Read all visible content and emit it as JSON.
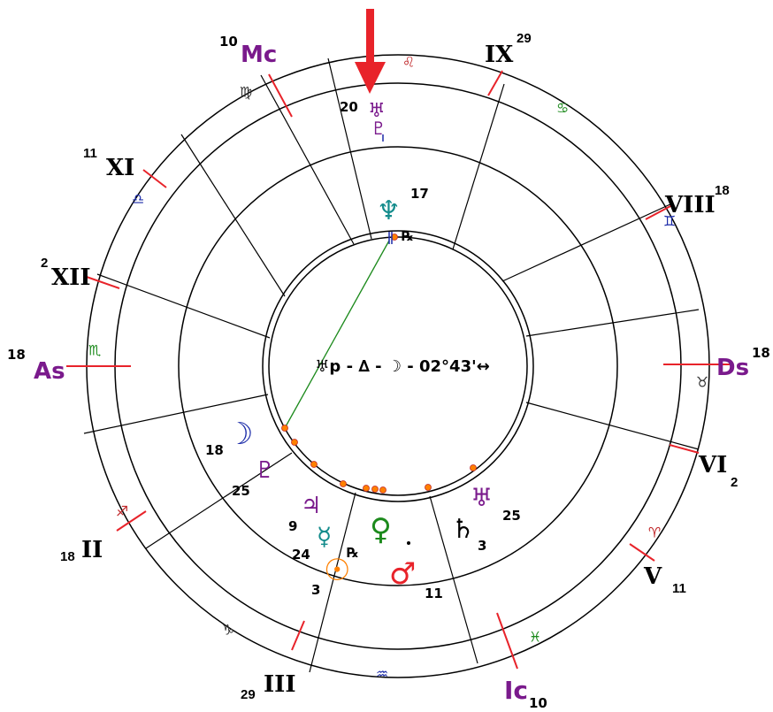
{
  "colors": {
    "ring": "#000000",
    "house_line": "#000000",
    "cusp_tick": "#e8232a",
    "arrow": "#e8232a",
    "aspect_line": "#1c8a1c",
    "angle_label": "#7a1a8c",
    "planet_dot": "#ff8000"
  },
  "aspect_label": "♅p - ∆ - ☽ - 02°43'↔",
  "angles": [
    {
      "name": "ascendant",
      "label": "As",
      "degree": "18"
    },
    {
      "name": "midheaven",
      "label": "Mc",
      "degree": "10"
    },
    {
      "name": "descendant",
      "label": "Ds",
      "degree": "18"
    },
    {
      "name": "imum-coeli",
      "label": "Ic",
      "degree": "10"
    }
  ],
  "houses": [
    {
      "label": "XII",
      "degree": "2"
    },
    {
      "label": "XI",
      "degree": "11"
    },
    {
      "label": "IX",
      "degree": "29"
    },
    {
      "label": "VIII",
      "degree": "18"
    },
    {
      "label": "VI",
      "degree": "2"
    },
    {
      "label": "V",
      "degree": "11"
    },
    {
      "label": "III",
      "degree": "29"
    },
    {
      "label": "II",
      "degree": "18"
    }
  ],
  "signs": [
    {
      "name": "leo",
      "glyph": "♌",
      "color": "#c0282a"
    },
    {
      "name": "cancer",
      "glyph": "♋",
      "color": "#1c8a1c"
    },
    {
      "name": "gemini",
      "glyph": "♊",
      "color": "#1a2aa8"
    },
    {
      "name": "taurus",
      "glyph": "♉",
      "color": "#333333"
    },
    {
      "name": "aries",
      "glyph": "♈",
      "color": "#c0282a"
    },
    {
      "name": "pisces",
      "glyph": "♓",
      "color": "#1c8a1c"
    },
    {
      "name": "aquarius",
      "glyph": "♒",
      "color": "#1a2aa8"
    },
    {
      "name": "capricorn",
      "glyph": "♑",
      "color": "#333333"
    },
    {
      "name": "sagittarius",
      "glyph": "♐",
      "color": "#c0282a"
    },
    {
      "name": "scorpio",
      "glyph": "♏",
      "color": "#1c8a1c"
    },
    {
      "name": "libra",
      "glyph": "♎",
      "color": "#1a2aa8"
    },
    {
      "name": "virgo",
      "glyph": "♍",
      "color": "#333333"
    }
  ],
  "planets": [
    {
      "name": "progressed-uranus",
      "glyph": "♅",
      "degree": "20",
      "color": "#7a1a8c"
    },
    {
      "name": "progressed-pluto",
      "glyph": "♇",
      "degree": "",
      "color": "#7a1a8c"
    },
    {
      "name": "neptune",
      "glyph": "♆",
      "degree": "17",
      "retro": "℞",
      "color": "#148c8c"
    },
    {
      "name": "moon",
      "glyph": "☽",
      "degree": "18",
      "color": "#1a2aa8"
    },
    {
      "name": "pluto",
      "glyph": "♇",
      "degree": "25",
      "color": "#7a1a8c"
    },
    {
      "name": "jupiter",
      "glyph": "♃",
      "degree": "9",
      "color": "#7a1a8c"
    },
    {
      "name": "mercury",
      "glyph": "☿",
      "degree": "24",
      "retro": "℞",
      "color": "#148c8c"
    },
    {
      "name": "sun",
      "glyph": "☉",
      "degree": "3",
      "color": "#ff8000"
    },
    {
      "name": "venus",
      "glyph": "♀",
      "degree": "",
      "color": "#1c8a1c"
    },
    {
      "name": "mars",
      "glyph": "♂",
      "degree": "11",
      "color": "#e8232a"
    },
    {
      "name": "uranus",
      "glyph": "♅",
      "degree": "25",
      "color": "#7a1a8c"
    },
    {
      "name": "saturn",
      "glyph": "♄",
      "degree": "3",
      "color": "#000000"
    }
  ]
}
